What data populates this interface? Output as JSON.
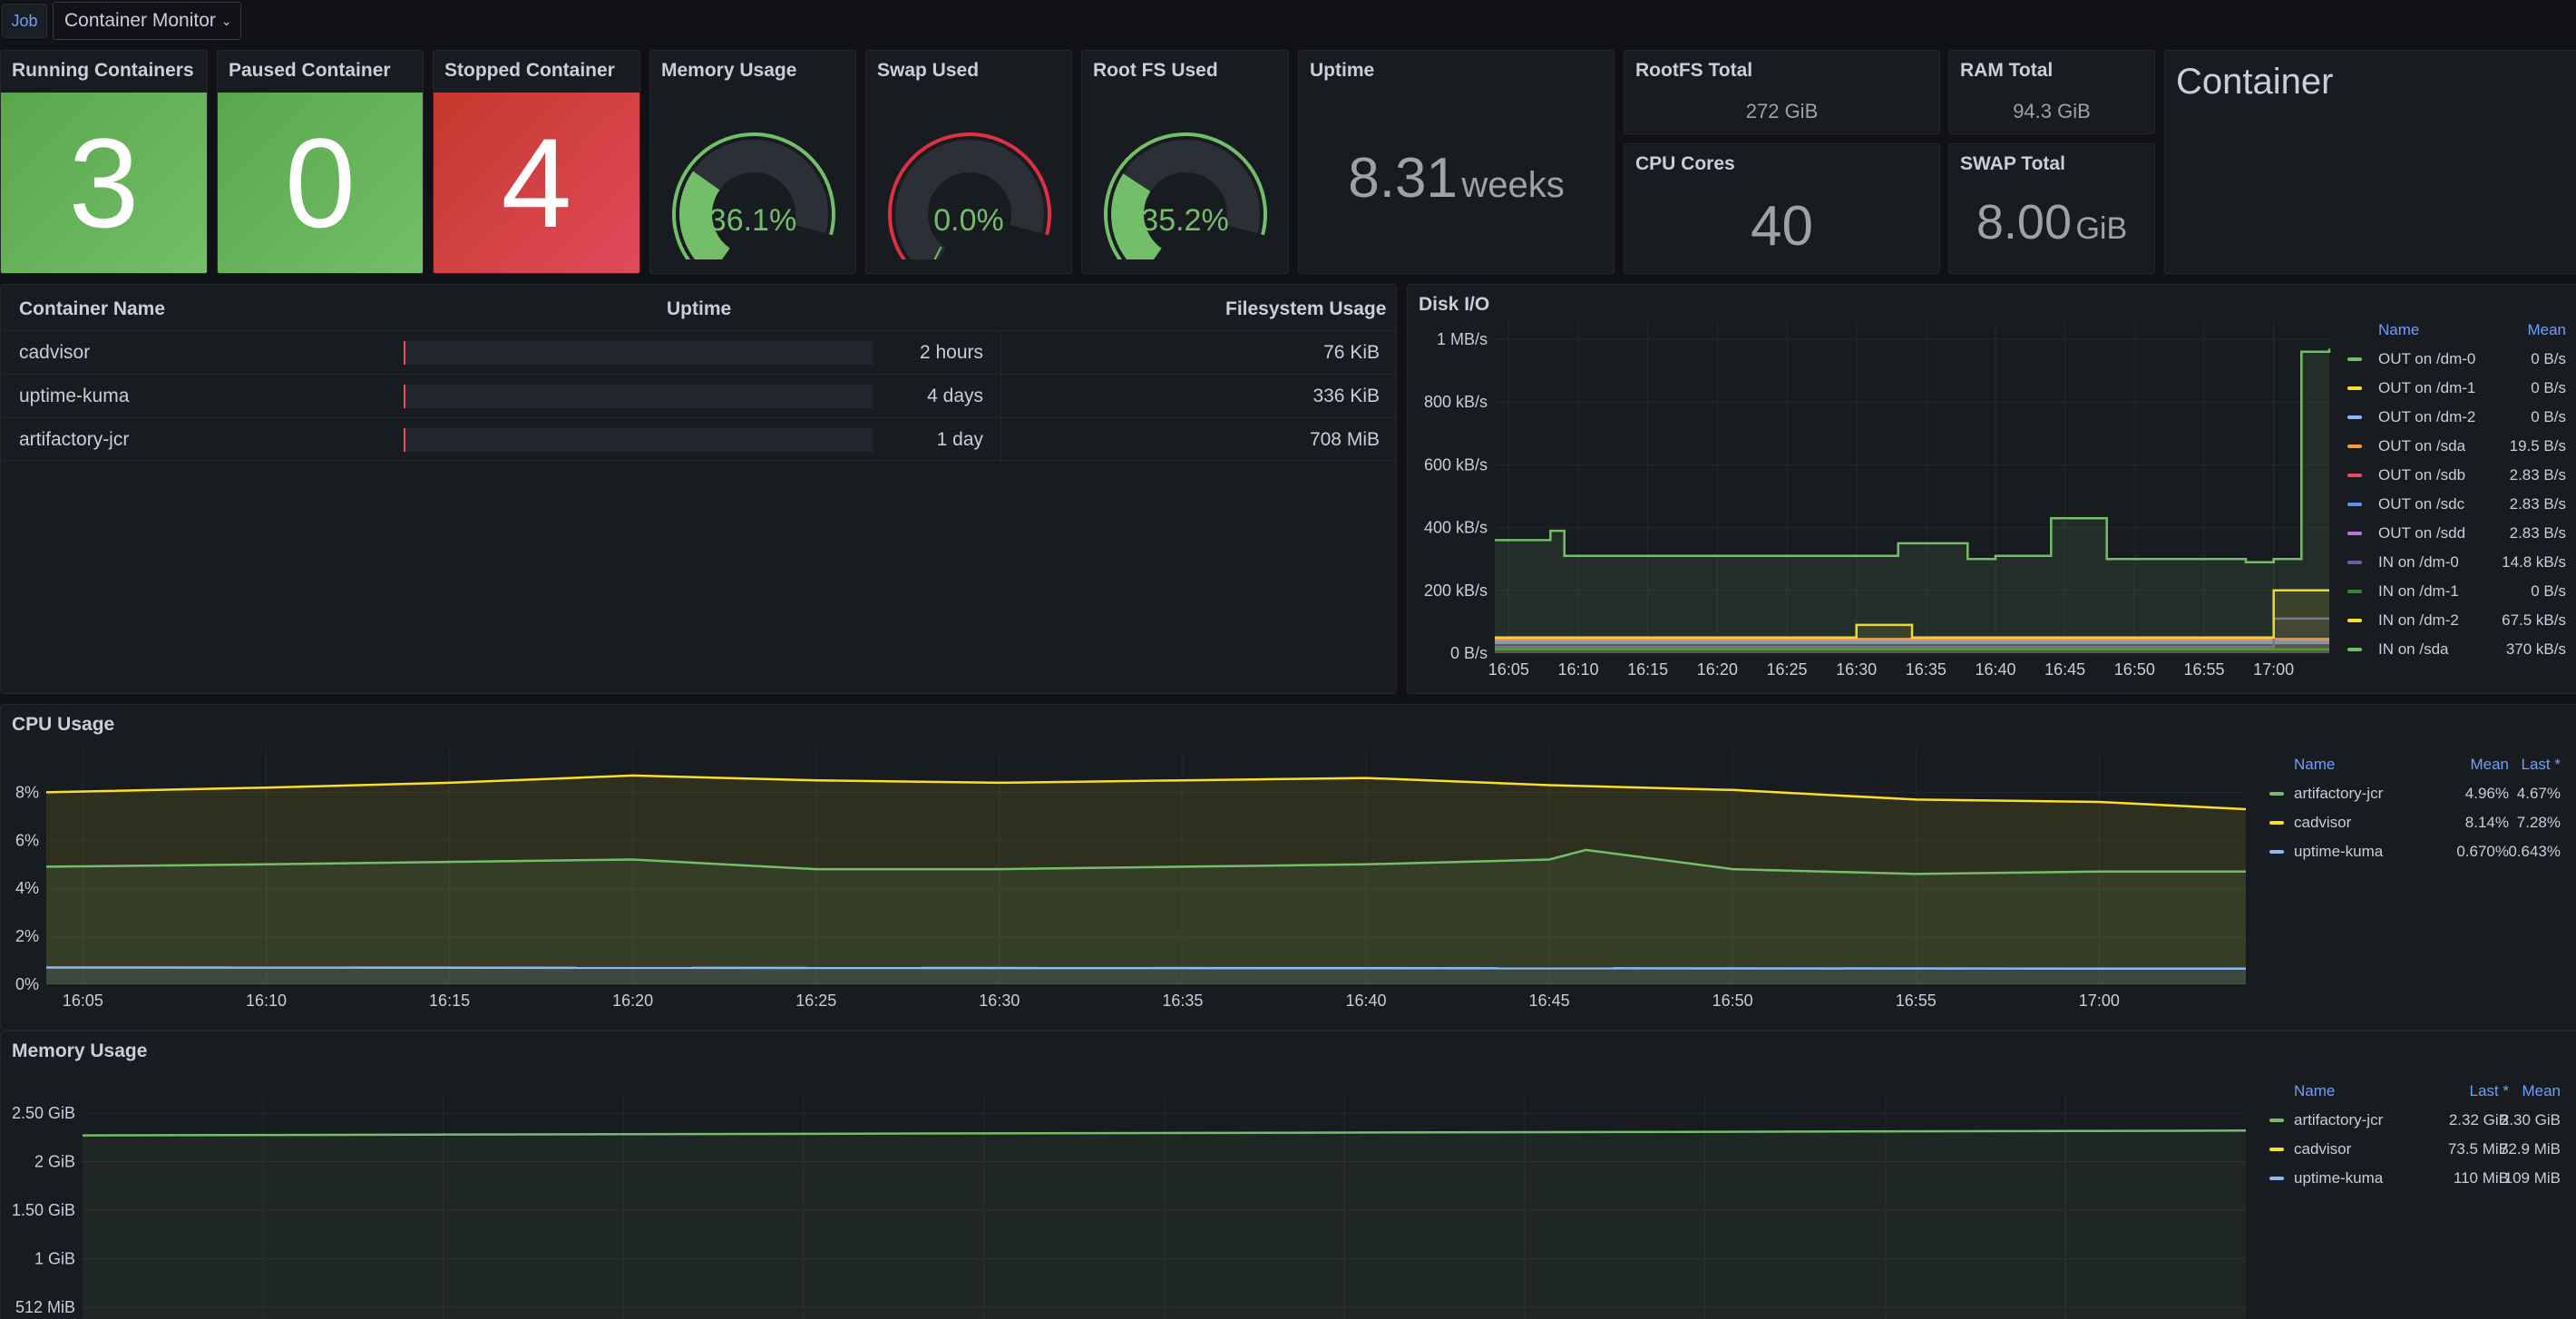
{
  "topbar": {
    "job_label": "Job",
    "variable_value": "Container Monitor"
  },
  "stats": {
    "running": {
      "title": "Running Containers",
      "value": "3"
    },
    "paused": {
      "title": "Paused Container",
      "value": "0"
    },
    "stopped": {
      "title": "Stopped Container",
      "value": "4"
    },
    "memory": {
      "title": "Memory Usage",
      "value": "36.1%",
      "fraction": 0.361
    },
    "swap": {
      "title": "Swap Used",
      "value": "0.0%",
      "fraction": 0.0
    },
    "rootfs": {
      "title": "Root FS Used",
      "value": "35.2%",
      "fraction": 0.352
    },
    "uptime": {
      "title": "Uptime",
      "value": "8.31",
      "unit": "weeks"
    },
    "rootfs_total": {
      "title": "RootFS Total",
      "value": "272 GiB"
    },
    "ram_total": {
      "title": "RAM Total",
      "value": "94.3 GiB"
    },
    "cpu_cores": {
      "title": "CPU Cores",
      "value": "40"
    },
    "swap_total": {
      "title": "SWAP Total",
      "value": "8.00",
      "unit": "GiB"
    },
    "container": {
      "title": "Container"
    }
  },
  "colors": {
    "green": "#73bf69",
    "red": "#e02f44",
    "yellow": "#fade2a",
    "blue": "#8ab8ff",
    "orange": "#ff9830",
    "purple": "#b877d9"
  },
  "table": {
    "headers": {
      "name": "Container Name",
      "uptime": "Uptime",
      "fs": "Filesystem Usage"
    },
    "rows": [
      {
        "name": "cadvisor",
        "uptime": "2 hours",
        "fs": "76 KiB"
      },
      {
        "name": "uptime-kuma",
        "uptime": "4 days",
        "fs": "336 KiB"
      },
      {
        "name": "artifactory-jcr",
        "uptime": "1 day",
        "fs": "708 MiB"
      }
    ]
  },
  "diskio": {
    "title": "Disk I/O",
    "legend_headers": {
      "name": "Name",
      "mean": "Mean"
    },
    "legend": [
      {
        "name": "OUT on /dm-0",
        "mean": "0 B/s",
        "color": "#73bf69"
      },
      {
        "name": "OUT on /dm-1",
        "mean": "0 B/s",
        "color": "#fade2a"
      },
      {
        "name": "OUT on /dm-2",
        "mean": "0 B/s",
        "color": "#8ab8ff"
      },
      {
        "name": "OUT on /sda",
        "mean": "19.5 B/s",
        "color": "#ff9830"
      },
      {
        "name": "OUT on /sdb",
        "mean": "2.83 B/s",
        "color": "#f2495c"
      },
      {
        "name": "OUT on /sdc",
        "mean": "2.83 B/s",
        "color": "#5794f2"
      },
      {
        "name": "OUT on /sdd",
        "mean": "2.83 B/s",
        "color": "#b877d9"
      },
      {
        "name": "IN on /dm-0",
        "mean": "14.8 kB/s",
        "color": "#705da0"
      },
      {
        "name": "IN on /dm-1",
        "mean": "0 B/s",
        "color": "#37872d"
      },
      {
        "name": "IN on /dm-2",
        "mean": "67.5 kB/s",
        "color": "#fade2a"
      },
      {
        "name": "IN on /sda",
        "mean": "370 kB/s",
        "color": "#73bf69"
      }
    ]
  },
  "cpu": {
    "title": "CPU Usage",
    "legend_headers": {
      "name": "Name",
      "mean": "Mean",
      "last": "Last *"
    },
    "legend": [
      {
        "name": "artifactory-jcr",
        "mean": "4.96%",
        "last": "4.67%",
        "color": "#73bf69"
      },
      {
        "name": "cadvisor",
        "mean": "8.14%",
        "last": "7.28%",
        "color": "#fade2a"
      },
      {
        "name": "uptime-kuma",
        "mean": "0.670%",
        "last": "0.643%",
        "color": "#8ab8ff"
      }
    ]
  },
  "memory": {
    "title": "Memory Usage",
    "legend_headers": {
      "name": "Name",
      "last": "Last *",
      "mean": "Mean"
    },
    "legend": [
      {
        "name": "artifactory-jcr",
        "last": "2.32 GiB",
        "mean": "2.30 GiB",
        "color": "#73bf69"
      },
      {
        "name": "cadvisor",
        "last": "73.5 MiB",
        "mean": "72.9 MiB",
        "color": "#fade2a"
      },
      {
        "name": "uptime-kuma",
        "last": "110 MiB",
        "mean": "109 MiB",
        "color": "#8ab8ff"
      }
    ]
  },
  "chart_data": [
    {
      "type": "line",
      "title": "Disk I/O",
      "x_ticks": [
        "16:05",
        "16:10",
        "16:15",
        "16:20",
        "16:25",
        "16:30",
        "16:35",
        "16:40",
        "16:45",
        "16:50",
        "16:55",
        "17:00"
      ],
      "y_ticks": [
        "0 B/s",
        "200 kB/s",
        "400 kB/s",
        "600 kB/s",
        "800 kB/s",
        "1 MB/s"
      ],
      "ylim_kBs": [
        0,
        1000
      ],
      "series": [
        {
          "name": "IN on /sda",
          "x": [
            "16:05",
            "16:08",
            "16:09",
            "16:30",
            "16:33",
            "16:38",
            "16:40",
            "16:44",
            "16:48",
            "16:58",
            "17:00",
            "17:02",
            "17:04"
          ],
          "values": [
            360,
            390,
            310,
            310,
            350,
            300,
            310,
            430,
            300,
            290,
            300,
            960,
            970
          ]
        },
        {
          "name": "IN on /dm-2",
          "x": [
            "16:05",
            "16:29",
            "16:30",
            "16:33",
            "16:34",
            "16:58",
            "17:00",
            "17:04"
          ],
          "values": [
            50,
            50,
            90,
            90,
            50,
            50,
            200,
            200
          ]
        },
        {
          "name": "IN on /dm-0",
          "x": [
            "16:05",
            "16:58",
            "17:00",
            "17:04"
          ],
          "values": [
            20,
            20,
            110,
            110
          ]
        }
      ]
    },
    {
      "type": "area",
      "title": "CPU Usage",
      "x_ticks": [
        "16:05",
        "16:10",
        "16:15",
        "16:20",
        "16:25",
        "16:30",
        "16:35",
        "16:40",
        "16:45",
        "16:50",
        "16:55",
        "17:00"
      ],
      "y_ticks": [
        "0%",
        "2%",
        "4%",
        "6%",
        "8%"
      ],
      "ylim": [
        0,
        9
      ],
      "series": [
        {
          "name": "cadvisor",
          "x": [
            "16:05",
            "16:10",
            "16:15",
            "16:20",
            "16:25",
            "16:30",
            "16:35",
            "16:40",
            "16:45",
            "16:50",
            "16:55",
            "17:00",
            "17:04"
          ],
          "values": [
            8.0,
            8.2,
            8.4,
            8.7,
            8.5,
            8.4,
            8.5,
            8.6,
            8.3,
            8.1,
            7.7,
            7.6,
            7.3
          ]
        },
        {
          "name": "artifactory-jcr",
          "x": [
            "16:05",
            "16:10",
            "16:15",
            "16:20",
            "16:25",
            "16:30",
            "16:35",
            "16:40",
            "16:45",
            "16:46",
            "16:50",
            "16:55",
            "17:00",
            "17:04"
          ],
          "values": [
            4.9,
            5.0,
            5.1,
            5.2,
            4.8,
            4.8,
            4.9,
            5.0,
            5.2,
            5.6,
            4.8,
            4.6,
            4.7,
            4.7
          ]
        },
        {
          "name": "uptime-kuma",
          "x": [
            "16:05",
            "17:04"
          ],
          "values": [
            0.7,
            0.65
          ]
        }
      ]
    },
    {
      "type": "area",
      "title": "Memory Usage",
      "y_ticks": [
        "512 MiB",
        "1 GiB",
        "1.50 GiB",
        "2 GiB",
        "2.50 GiB"
      ],
      "series": [
        {
          "name": "artifactory-jcr",
          "x": [
            "16:05",
            "17:04"
          ],
          "values_gib": [
            2.27,
            2.32
          ]
        }
      ]
    }
  ]
}
